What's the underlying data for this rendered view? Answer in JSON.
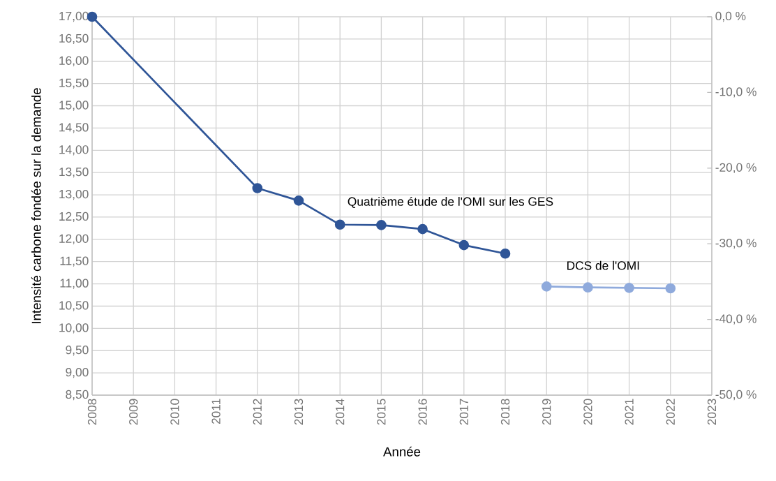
{
  "chart_data": {
    "type": "line",
    "xlabel": "Année",
    "ylabel": "Intensité carbone fondée sur la demande",
    "series": [
      {
        "name": "Quatrième étude de l'OMI sur les GES",
        "color": "#2f5597",
        "x": [
          2008,
          2012,
          2013,
          2014,
          2015,
          2016,
          2017,
          2018
        ],
        "values": [
          17.0,
          13.15,
          12.87,
          12.33,
          12.32,
          12.23,
          11.87,
          11.68
        ]
      },
      {
        "name": "DCS de l'OMI",
        "color": "#8faadc",
        "x": [
          2019,
          2020,
          2021,
          2022
        ],
        "values": [
          10.94,
          10.92,
          10.91,
          10.9
        ]
      }
    ],
    "xlim": [
      2008,
      2023
    ],
    "xticks": [
      2008,
      2009,
      2010,
      2011,
      2012,
      2013,
      2014,
      2015,
      2016,
      2017,
      2018,
      2019,
      2020,
      2021,
      2022,
      2023
    ],
    "ylim": [
      8.5,
      17
    ],
    "yticks": [
      {
        "value": 8.5,
        "label": "8,50"
      },
      {
        "value": 9,
        "label": "9,00"
      },
      {
        "value": 9.5,
        "label": "9,50"
      },
      {
        "value": 10,
        "label": "10,00"
      },
      {
        "value": 10.5,
        "label": "10,50"
      },
      {
        "value": 11,
        "label": "11,00"
      },
      {
        "value": 11.5,
        "label": "11,50"
      },
      {
        "value": 12,
        "label": "12,00"
      },
      {
        "value": 12.5,
        "label": "12,50"
      },
      {
        "value": 13,
        "label": "13,00"
      },
      {
        "value": 13.5,
        "label": "13,50"
      },
      {
        "value": 14,
        "label": "14,00"
      },
      {
        "value": 14.5,
        "label": "14,50"
      },
      {
        "value": 15,
        "label": "15,00"
      },
      {
        "value": 15.5,
        "label": "15,50"
      },
      {
        "value": 16,
        "label": "16,00"
      },
      {
        "value": 16.5,
        "label": "16,50"
      },
      {
        "value": 17,
        "label": "17,00"
      }
    ],
    "y2lim": [
      -50,
      0
    ],
    "y2ticks": [
      {
        "value": -50,
        "label": "-50,0 %"
      },
      {
        "value": -40,
        "label": "-40,0 %"
      },
      {
        "value": -30,
        "label": "-30,0 %"
      },
      {
        "value": -20,
        "label": "-20,0 %"
      },
      {
        "value": -10,
        "label": "-10,0 %"
      },
      {
        "value": 0,
        "label": "0,0 %"
      }
    ],
    "grid": true,
    "legend": false,
    "marker": "circle",
    "line_style": "solid"
  }
}
